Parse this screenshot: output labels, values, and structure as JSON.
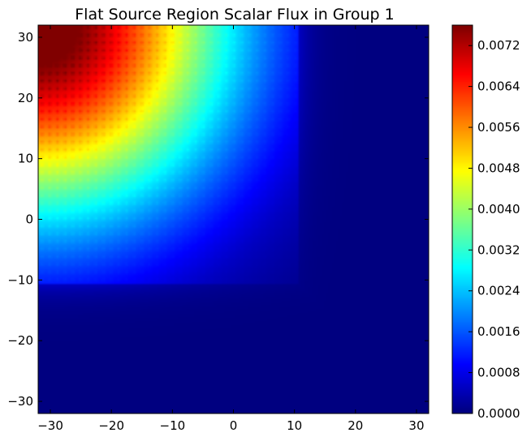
{
  "chart_data": {
    "type": "heatmap",
    "title": "Flat Source Region Scalar Flux in Group 1",
    "xlabel": "",
    "ylabel": "",
    "xlim": [
      -32,
      32
    ],
    "ylim": [
      -32,
      32
    ],
    "x_ticks": [
      "−30",
      "−20",
      "−10",
      "0",
      "10",
      "20",
      "30"
    ],
    "x_tick_values": [
      -30,
      -20,
      -10,
      0,
      10,
      20,
      30
    ],
    "y_ticks": [
      "−30",
      "−20",
      "−10",
      "0",
      "10",
      "20",
      "30"
    ],
    "y_tick_values": [
      -30,
      -20,
      -10,
      0,
      10,
      20,
      30
    ],
    "colormap": "jet",
    "colorbar": {
      "min": 0.0,
      "max": 0.0076,
      "ticks": [
        "0.0000",
        "0.0008",
        "0.0016",
        "0.0024",
        "0.0032",
        "0.0040",
        "0.0048",
        "0.0056",
        "0.0064",
        "0.0072"
      ],
      "tick_values": [
        0.0,
        0.0008,
        0.0016,
        0.0024,
        0.0032,
        0.004,
        0.0048,
        0.0056,
        0.0064,
        0.0072
      ]
    },
    "field_description_points": [
      {
        "x": -30,
        "y": 30,
        "flux": 0.0076
      },
      {
        "x": -20,
        "y": 20,
        "flux": 0.0062
      },
      {
        "x": -30,
        "y": 10,
        "flux": 0.005
      },
      {
        "x": -10,
        "y": 30,
        "flux": 0.0048
      },
      {
        "x": -30,
        "y": 0,
        "flux": 0.003
      },
      {
        "x": 0,
        "y": 30,
        "flux": 0.003
      },
      {
        "x": -10,
        "y": 0,
        "flux": 0.002
      },
      {
        "x": 10,
        "y": 10,
        "flux": 0.0004
      },
      {
        "x": 20,
        "y": 20,
        "flux": 0.0
      },
      {
        "x": -20,
        "y": -20,
        "flux": 0.0001
      }
    ]
  }
}
